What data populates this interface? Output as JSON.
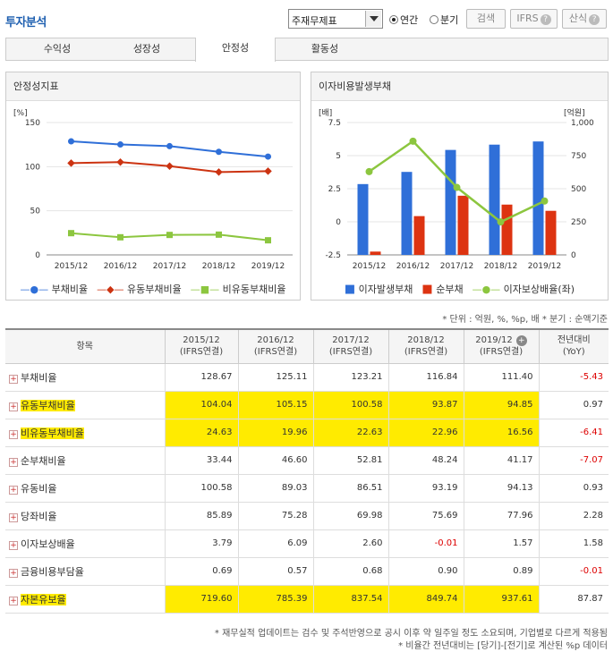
{
  "header": {
    "title": "투자분석",
    "report_select": "주재무제표",
    "radio_annual": "연간",
    "radio_quarter": "분기",
    "search_btn": "검색",
    "ifrs_btn": "IFRS",
    "formula_btn": "산식",
    "help": "?"
  },
  "tabs": [
    {
      "label": "수익성"
    },
    {
      "label": "성장성"
    },
    {
      "label": "안정성"
    },
    {
      "label": "활동성"
    }
  ],
  "left_chart": {
    "title": "안정성지표",
    "unit": "[%]",
    "legend": [
      "부채비율",
      "유동부채비율",
      "비유동부채비율"
    ]
  },
  "right_chart": {
    "title": "이자비용발생부채",
    "unit_left": "[배]",
    "unit_right": "[억원]",
    "legend": [
      "이자발생부채",
      "순부채",
      "이자보상배율(좌)"
    ]
  },
  "chart_data": [
    {
      "type": "line",
      "categories": [
        "2015/12",
        "2016/12",
        "2017/12",
        "2018/12",
        "2019/12"
      ],
      "ylim": [
        0,
        150
      ],
      "yticks": [
        0,
        50,
        100,
        150
      ],
      "series": [
        {
          "name": "부채비율",
          "color": "#2f6fd8",
          "values": [
            128.67,
            125.11,
            123.21,
            116.84,
            111.4
          ]
        },
        {
          "name": "유동부채비율",
          "color": "#cc3311",
          "values": [
            104.04,
            105.15,
            100.58,
            93.87,
            94.85
          ]
        },
        {
          "name": "비유동부채비율",
          "color": "#8cc63f",
          "values": [
            24.63,
            19.96,
            22.63,
            22.96,
            16.56
          ]
        }
      ],
      "legend_position": "bottom"
    },
    {
      "type": "bar",
      "categories": [
        "2015/12",
        "2016/12",
        "2017/12",
        "2018/12",
        "2019/12"
      ],
      "ylim_left": [
        -2.5,
        7.5
      ],
      "yticks_left": [
        -2.5,
        0,
        2.5,
        5,
        7.5
      ],
      "ylim_right": [
        0,
        1000
      ],
      "yticks_right": [
        0,
        250,
        500,
        750,
        1000
      ],
      "series": [
        {
          "name": "이자발생부채",
          "color": "#2f6fd8",
          "axis": "right",
          "values": [
            535,
            627,
            793,
            833,
            857
          ]
        },
        {
          "name": "순부채",
          "color": "#dd3311",
          "axis": "right",
          "values": [
            25,
            293,
            447,
            380,
            333
          ]
        },
        {
          "name": "이자보상배율(좌)",
          "color": "#8cc63f",
          "axis": "left",
          "type": "line",
          "values": [
            3.79,
            6.09,
            2.6,
            -0.01,
            1.57
          ]
        }
      ],
      "legend_position": "bottom"
    }
  ],
  "notes": "* 단위 : 억원, %, %p, 배   * 분기 : 순액기준",
  "table": {
    "headers": [
      "항목",
      "2015/12",
      "(IFRS연결)",
      "2016/12",
      "(IFRS연결)",
      "2017/12",
      "(IFRS연결)",
      "2018/12",
      "(IFRS연결)",
      "2019/12",
      "(IFRS연결)",
      "전년대비",
      "(YoY)"
    ],
    "rows": [
      {
        "label": "부채비율",
        "v": [
          "128.67",
          "125.11",
          "123.21",
          "116.84",
          "111.40",
          "-5.43"
        ]
      },
      {
        "label": "유동부채비율",
        "v": [
          "104.04",
          "105.15",
          "100.58",
          "93.87",
          "94.85",
          "0.97"
        ]
      },
      {
        "label": "비유동부채비율",
        "v": [
          "24.63",
          "19.96",
          "22.63",
          "22.96",
          "16.56",
          "-6.41"
        ]
      },
      {
        "label": "순부채비율",
        "v": [
          "33.44",
          "46.60",
          "52.81",
          "48.24",
          "41.17",
          "-7.07"
        ]
      },
      {
        "label": "유동비율",
        "v": [
          "100.58",
          "89.03",
          "86.51",
          "93.19",
          "94.13",
          "0.93"
        ]
      },
      {
        "label": "당좌비율",
        "v": [
          "85.89",
          "75.28",
          "69.98",
          "75.69",
          "77.96",
          "2.28"
        ]
      },
      {
        "label": "이자보상배율",
        "v": [
          "3.79",
          "6.09",
          "2.60",
          "-0.01",
          "1.57",
          "1.58"
        ]
      },
      {
        "label": "금융비용부담율",
        "v": [
          "0.69",
          "0.57",
          "0.68",
          "0.90",
          "0.89",
          "-0.01"
        ]
      },
      {
        "label": "자본유보율",
        "v": [
          "719.60",
          "785.39",
          "837.54",
          "849.74",
          "937.61",
          "87.87"
        ]
      }
    ]
  },
  "footnote1": "* 재무실적 업데이트는 검수 및 주석반영으로 공시 이후 약 일주일 정도 소요되며, 기업별로 다르게 적용됨",
  "footnote2": "* 비율간 전년대비는 [당기]-[전기]로 계산된 %p 데이터"
}
